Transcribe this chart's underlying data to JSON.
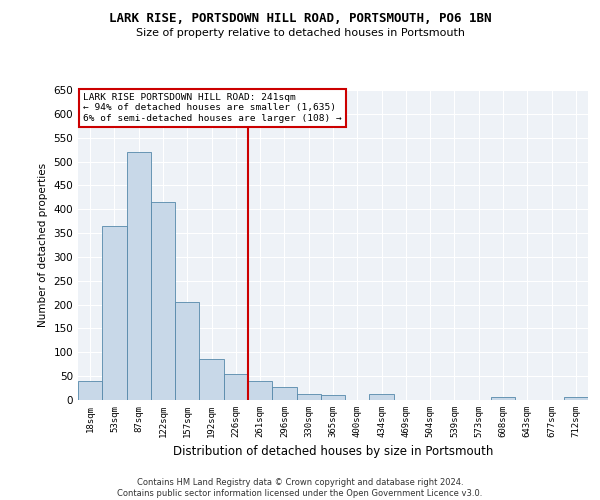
{
  "title": "LARK RISE, PORTSDOWN HILL ROAD, PORTSMOUTH, PO6 1BN",
  "subtitle": "Size of property relative to detached houses in Portsmouth",
  "xlabel": "Distribution of detached houses by size in Portsmouth",
  "ylabel": "Number of detached properties",
  "bar_color": "#c8d8e8",
  "bar_edge_color": "#5588aa",
  "background_color": "#eef2f7",
  "grid_color": "#ffffff",
  "categories": [
    "18sqm",
    "53sqm",
    "87sqm",
    "122sqm",
    "157sqm",
    "192sqm",
    "226sqm",
    "261sqm",
    "296sqm",
    "330sqm",
    "365sqm",
    "400sqm",
    "434sqm",
    "469sqm",
    "504sqm",
    "539sqm",
    "573sqm",
    "608sqm",
    "643sqm",
    "677sqm",
    "712sqm"
  ],
  "values": [
    40,
    365,
    520,
    415,
    205,
    85,
    55,
    40,
    27,
    13,
    10,
    0,
    12,
    0,
    0,
    0,
    0,
    7,
    0,
    0,
    7
  ],
  "vline_index": 7,
  "vline_color": "#cc0000",
  "annotation_box_text": "LARK RISE PORTSDOWN HILL ROAD: 241sqm\n← 94% of detached houses are smaller (1,635)\n6% of semi-detached houses are larger (108) →",
  "ylim": [
    0,
    650
  ],
  "yticks": [
    0,
    50,
    100,
    150,
    200,
    250,
    300,
    350,
    400,
    450,
    500,
    550,
    600,
    650
  ],
  "footer_line1": "Contains HM Land Registry data © Crown copyright and database right 2024.",
  "footer_line2": "Contains public sector information licensed under the Open Government Licence v3.0."
}
